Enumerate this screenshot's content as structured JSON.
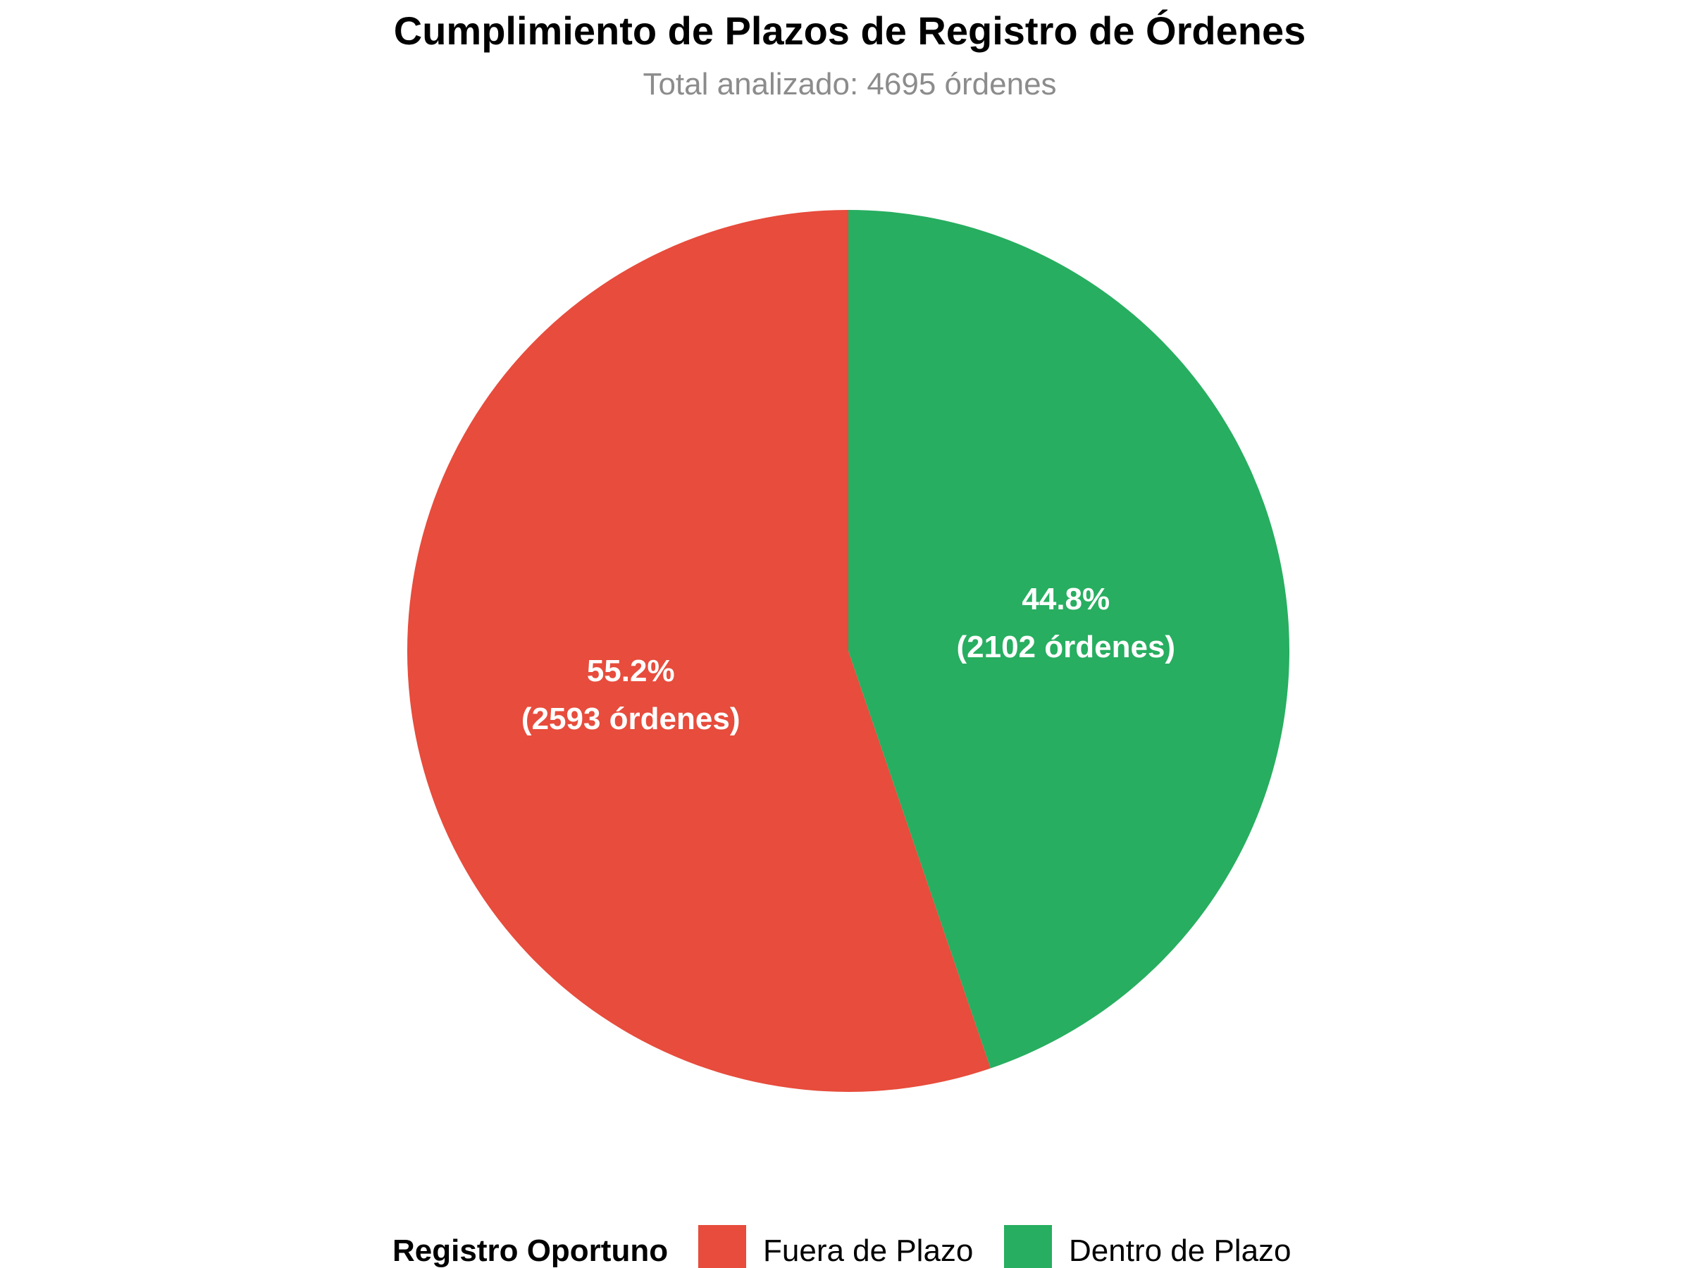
{
  "chart_data": {
    "type": "pie",
    "title": "Cumplimiento de Plazos de Registro de Órdenes",
    "subtitle": "Total analizado: 4695 órdenes",
    "slices": [
      {
        "name": "Fuera de Plazo",
        "value": 2593,
        "percent_label": "55.2%",
        "count_label": "(2593 órdenes)",
        "color": "#e74c3c"
      },
      {
        "name": "Dentro de Plazo",
        "value": 2102,
        "percent_label": "44.8%",
        "count_label": "(2102 órdenes)",
        "color": "#27ae60"
      }
    ],
    "legend": {
      "title": "Registro Oportuno",
      "position": "bottom"
    }
  }
}
